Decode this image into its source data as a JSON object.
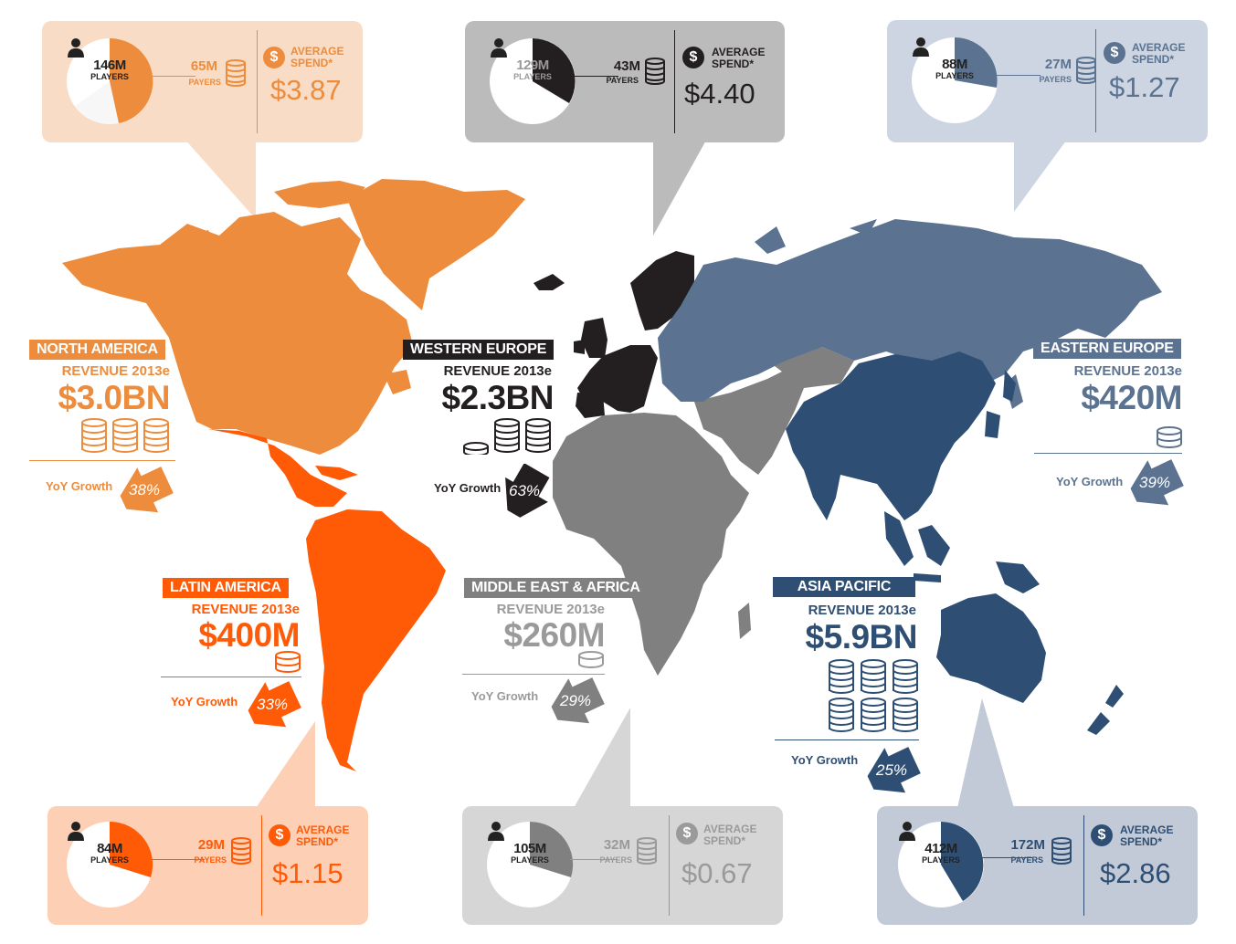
{
  "colors": {
    "north_america": "#ec8c3c",
    "latin_america": "#ff5a06",
    "western_europe": "#231f20",
    "middle_east_africa": "#808080",
    "eastern_europe": "#5b7390",
    "asia_pacific": "#2e4f73"
  },
  "regions": {
    "north_america": {
      "name": "NORTH AMERICA",
      "revenue_label": "REVENUE 2013e",
      "revenue": "$3.0BN",
      "yoy_label": "YoY Growth",
      "yoy": "38%",
      "yoy_value": 38,
      "players": "146M",
      "players_label": "PLAYERS",
      "payers": "65M",
      "payers_label": "PAYERS",
      "avg_label_1": "AVERAGE",
      "avg_label_2": "SPEND*",
      "avg_spend": "$3.87",
      "payer_share": 0.45,
      "coin_icon": "coin-stack-icon"
    },
    "western_europe": {
      "name": "WESTERN EUROPE",
      "revenue_label": "REVENUE 2013e",
      "revenue": "$2.3BN",
      "yoy_label": "YoY Growth",
      "yoy": "63%",
      "yoy_value": 63,
      "players": "129M",
      "players_label": "PLAYERS",
      "payers": "43M",
      "payers_label": "PAYERS",
      "avg_label_1": "AVERAGE",
      "avg_label_2": "SPEND*",
      "avg_spend": "$4.40",
      "payer_share": 0.33,
      "coin_icon": "coin-stack-icon"
    },
    "eastern_europe": {
      "name": "EASTERN EUROPE",
      "revenue_label": "REVENUE 2013e",
      "revenue": "$420M",
      "yoy_label": "YoY Growth",
      "yoy": "39%",
      "yoy_value": 39,
      "players": "88M",
      "players_label": "PLAYERS",
      "payers": "27M",
      "payers_label": "PAYERS",
      "avg_label_1": "AVERAGE",
      "avg_label_2": "SPEND*",
      "avg_spend": "$1.27",
      "payer_share": 0.31,
      "coin_icon": "coin-stack-icon"
    },
    "latin_america": {
      "name": "LATIN AMERICA",
      "revenue_label": "REVENUE 2013e",
      "revenue": "$400M",
      "yoy_label": "YoY Growth",
      "yoy": "33%",
      "yoy_value": 33,
      "players": "84M",
      "players_label": "PLAYERS",
      "payers": "29M",
      "payers_label": "PAYERS",
      "avg_label_1": "AVERAGE",
      "avg_label_2": "SPEND*",
      "avg_spend": "$1.15",
      "payer_share": 0.35,
      "coin_icon": "coin-stack-icon"
    },
    "middle_east_africa": {
      "name": "MIDDLE EAST & AFRICA",
      "revenue_label": "REVENUE 2013e",
      "revenue": "$260M",
      "yoy_label": "YoY  Growth",
      "yoy": "29%",
      "yoy_value": 29,
      "players": "105M",
      "players_label": "PLAYERS",
      "payers": "32M",
      "payers_label": "PAYERS",
      "avg_label_1": "AVERAGE",
      "avg_label_2": "SPEND*",
      "avg_spend": "$0.67",
      "payer_share": 0.3,
      "coin_icon": "coin-stack-icon"
    },
    "asia_pacific": {
      "name": "ASIA PACIFIC",
      "revenue_label": "REVENUE 2013e",
      "revenue": "$5.9BN",
      "yoy_label": "YoY Growth",
      "yoy": "25%",
      "yoy_value": 25,
      "players": "412M",
      "players_label": "PLAYERS",
      "payers": "172M",
      "payers_label": "PAYERS",
      "avg_label_1": "AVERAGE",
      "avg_label_2": "SPEND*",
      "avg_spend": "$2.86",
      "payer_share": 0.42,
      "coin_icon": "coin-stack-icon"
    }
  }
}
